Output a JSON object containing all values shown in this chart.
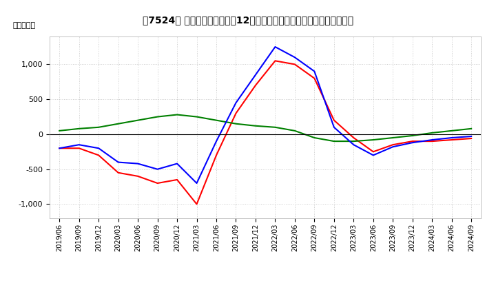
{
  "title": "【7524】 キャッシュフローの12か月移動合計の対前年同期増減額の推移",
  "ylabel": "（百万円）",
  "ylim": [
    -1200,
    1400
  ],
  "yticks": [
    -1000,
    -500,
    0,
    500,
    1000
  ],
  "dates": [
    "2019/06",
    "2019/09",
    "2019/12",
    "2020/03",
    "2020/06",
    "2020/09",
    "2020/12",
    "2021/03",
    "2021/06",
    "2021/09",
    "2021/12",
    "2022/03",
    "2022/06",
    "2022/09",
    "2022/12",
    "2023/03",
    "2023/06",
    "2023/09",
    "2023/12",
    "2024/03",
    "2024/06",
    "2024/09"
  ],
  "operating_cf": [
    -200,
    -200,
    -300,
    -550,
    -600,
    -700,
    -650,
    -1000,
    -300,
    300,
    700,
    1050,
    1000,
    800,
    200,
    -50,
    -250,
    -150,
    -100,
    -100,
    -80,
    -60
  ],
  "investing_cf": [
    50,
    80,
    100,
    150,
    200,
    250,
    280,
    250,
    200,
    150,
    120,
    100,
    50,
    -50,
    -100,
    -100,
    -80,
    -50,
    -20,
    20,
    50,
    80
  ],
  "free_cf": [
    -200,
    -150,
    -200,
    -400,
    -420,
    -500,
    -420,
    -700,
    -100,
    450,
    850,
    1250,
    1100,
    900,
    100,
    -150,
    -300,
    -180,
    -120,
    -80,
    -50,
    -30
  ],
  "color_operating": "#ff0000",
  "color_investing": "#008000",
  "color_free": "#0000ff",
  "background_color": "#ffffff",
  "grid_color": "#cccccc"
}
